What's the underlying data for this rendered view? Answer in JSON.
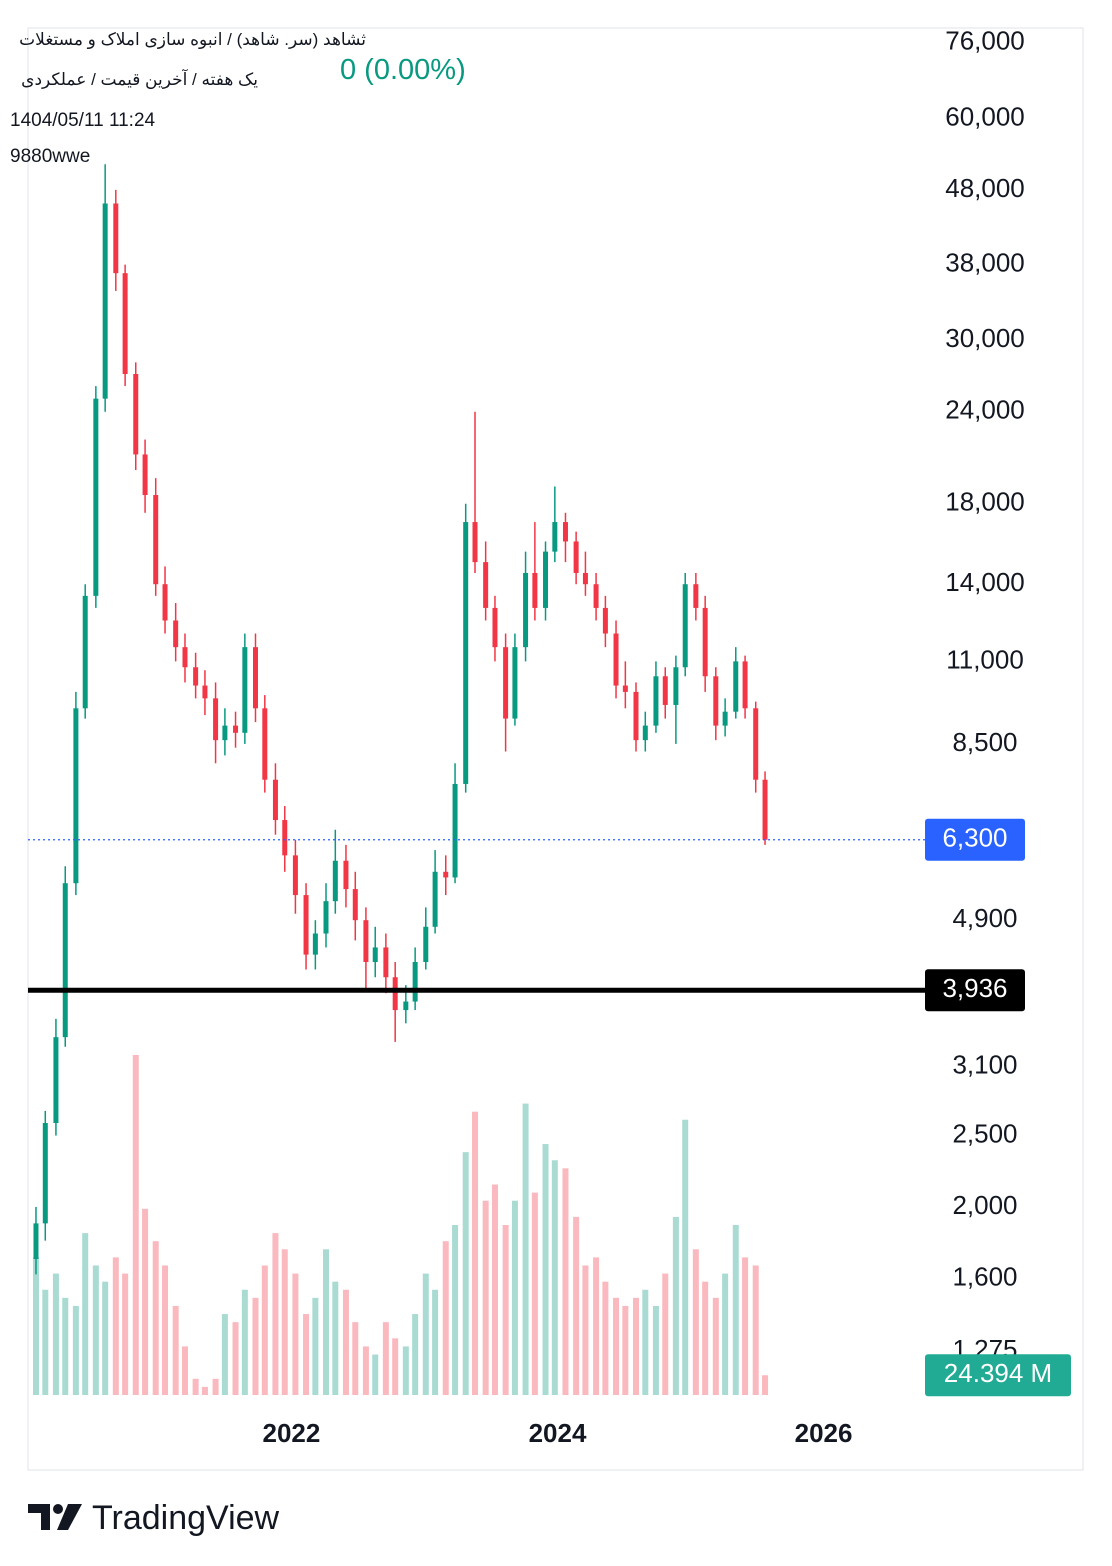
{
  "header": {
    "title": "ثشاهد (سر. شاهد) / انبوه سازی املاک و مستغلات",
    "subtitle": "یک هفته / آخرین قیمت / عملکردی",
    "datetime": "1404/05/11 11:24",
    "user": "9880wwe",
    "change": "0 (0.00%)"
  },
  "footer": {
    "brand": "TradingView"
  },
  "chart_data": {
    "type": "candlestick",
    "log_scale": true,
    "up_color": "#089981",
    "down_color": "#f23645",
    "xlim": [
      2020.02,
      2027.95
    ],
    "xticks": [
      2022,
      2024,
      2026
    ],
    "ylim": [
      1101,
      79600
    ],
    "yticks": [
      {
        "value": 76000,
        "label": "76,000"
      },
      {
        "value": 60000,
        "label": "60,000"
      },
      {
        "value": 48000,
        "label": "48,000"
      },
      {
        "value": 38000,
        "label": "38,000"
      },
      {
        "value": 30000,
        "label": "30,000"
      },
      {
        "value": 24000,
        "label": "24,000"
      },
      {
        "value": 18000,
        "label": "18,000"
      },
      {
        "value": 14000,
        "label": "14,000"
      },
      {
        "value": 11000,
        "label": "11,000"
      },
      {
        "value": 8500,
        "label": "8,500"
      },
      {
        "value": 4900,
        "label": "4,900"
      },
      {
        "value": 3100,
        "label": "3,100"
      },
      {
        "value": 2500,
        "label": "2,500"
      },
      {
        "value": 2000,
        "label": "2,000"
      },
      {
        "value": 1600,
        "label": "1,600"
      },
      {
        "value": 1275,
        "label": "1,275"
      }
    ],
    "x": [
      2020.08,
      2020.15,
      2020.23,
      2020.3,
      2020.38,
      2020.45,
      2020.53,
      2020.6,
      2020.68,
      2020.75,
      2020.83,
      2020.9,
      2020.98,
      2021.05,
      2021.13,
      2021.2,
      2021.28,
      2021.35,
      2021.43,
      2021.5,
      2021.58,
      2021.65,
      2021.73,
      2021.8,
      2021.88,
      2021.95,
      2022.03,
      2022.11,
      2022.18,
      2022.26,
      2022.33,
      2022.41,
      2022.48,
      2022.56,
      2022.63,
      2022.71,
      2022.78,
      2022.86,
      2022.93,
      2023.01,
      2023.08,
      2023.16,
      2023.23,
      2023.31,
      2023.38,
      2023.46,
      2023.53,
      2023.61,
      2023.68,
      2023.76,
      2023.83,
      2023.91,
      2023.98,
      2024.06,
      2024.14,
      2024.21,
      2024.29,
      2024.36,
      2024.44,
      2024.51,
      2024.59,
      2024.66,
      2024.74,
      2024.81,
      2024.89,
      2024.96,
      2025.04,
      2025.11,
      2025.19,
      2025.26,
      2025.34,
      2025.41,
      2025.49,
      2025.56
    ],
    "open": [
      1700,
      1900,
      2600,
      3400,
      5500,
      9500,
      13500,
      25000,
      46000,
      37000,
      27000,
      21000,
      18500,
      14000,
      12500,
      11500,
      10800,
      10200,
      9800,
      8600,
      9000,
      8800,
      11500,
      9500,
      7600,
      6700,
      6000,
      5300,
      4400,
      4700,
      5200,
      5900,
      5400,
      4900,
      4300,
      4500,
      4100,
      3700,
      3800,
      4300,
      4800,
      5700,
      5600,
      7500,
      17000,
      15000,
      13000,
      11500,
      9200,
      11500,
      14500,
      13000,
      15500,
      17000,
      16000,
      14500,
      14000,
      13000,
      12000,
      10200,
      10000,
      8600,
      9000,
      10500,
      9600,
      10800,
      14000,
      13000,
      10500,
      9000,
      9400,
      11000,
      9500,
      7600
    ],
    "high": [
      2000,
      2700,
      3600,
      5800,
      10000,
      14000,
      26000,
      52000,
      48000,
      38000,
      28000,
      22000,
      19500,
      14800,
      13200,
      12000,
      11300,
      10700,
      10300,
      9500,
      9400,
      12000,
      12000,
      9900,
      8000,
      7000,
      6300,
      5500,
      4900,
      5500,
      6500,
      6200,
      5700,
      5100,
      4800,
      4700,
      4300,
      4000,
      4500,
      5100,
      6100,
      6000,
      8000,
      18000,
      24000,
      16000,
      13500,
      12000,
      12000,
      15500,
      17000,
      16000,
      19000,
      17500,
      16500,
      15500,
      14500,
      13500,
      12500,
      11000,
      10300,
      9400,
      11000,
      10800,
      11200,
      14500,
      14500,
      13500,
      10800,
      9800,
      11500,
      11200,
      9700,
      7800
    ],
    "low": [
      1620,
      1800,
      2500,
      3300,
      5300,
      9200,
      13000,
      24000,
      35000,
      26000,
      20000,
      17500,
      13500,
      12000,
      11000,
      10300,
      9800,
      9300,
      8000,
      8200,
      8400,
      8500,
      9100,
      7300,
      6400,
      5700,
      5000,
      4200,
      4200,
      4500,
      5000,
      5100,
      4600,
      3950,
      4100,
      3900,
      3350,
      3550,
      3700,
      4200,
      4700,
      5300,
      5500,
      7300,
      14500,
      12500,
      11000,
      8300,
      9000,
      11000,
      12500,
      12500,
      15000,
      15000,
      14000,
      13500,
      12500,
      11500,
      9800,
      9500,
      8300,
      8300,
      8800,
      9200,
      8500,
      10500,
      12500,
      10000,
      8600,
      8700,
      9200,
      9200,
      7300,
      6200
    ],
    "close": [
      1900,
      2600,
      3400,
      5500,
      9500,
      13500,
      25000,
      46000,
      37000,
      27000,
      21000,
      18500,
      14000,
      12500,
      11500,
      10800,
      10200,
      9800,
      8600,
      9000,
      8800,
      11500,
      9500,
      7600,
      6700,
      6000,
      5300,
      4400,
      4700,
      5200,
      5900,
      5400,
      4900,
      4300,
      4500,
      4100,
      3700,
      3800,
      4300,
      4800,
      5700,
      5600,
      7500,
      17000,
      15000,
      13000,
      11500,
      9200,
      11500,
      14500,
      13000,
      15500,
      17000,
      16000,
      14500,
      14000,
      13000,
      12000,
      10200,
      10000,
      8600,
      9000,
      10500,
      9600,
      10800,
      14000,
      13000,
      10500,
      9000,
      9400,
      11000,
      9500,
      7600,
      6300
    ],
    "volume": [
      170,
      130,
      150,
      120,
      110,
      200,
      160,
      140,
      170,
      150,
      420,
      230,
      190,
      160,
      110,
      60,
      20,
      10,
      20,
      100,
      90,
      130,
      120,
      160,
      200,
      180,
      150,
      100,
      120,
      180,
      140,
      130,
      90,
      60,
      50,
      90,
      70,
      60,
      100,
      150,
      130,
      190,
      210,
      300,
      350,
      240,
      260,
      210,
      240,
      360,
      250,
      310,
      290,
      280,
      220,
      160,
      170,
      140,
      120,
      110,
      120,
      130,
      110,
      150,
      220,
      340,
      180,
      140,
      120,
      150,
      210,
      170,
      160,
      24.394
    ],
    "volume_ylim": [
      0,
      420
    ],
    "last_volume": {
      "value": 24.394,
      "label": "24.394 M"
    },
    "price_lines": [
      {
        "value": 6300,
        "label": "6,300",
        "color": "#2962ff",
        "style": "dotted"
      },
      {
        "value": 3936,
        "label": "3,936",
        "color": "#000000",
        "style": "solid"
      }
    ]
  }
}
